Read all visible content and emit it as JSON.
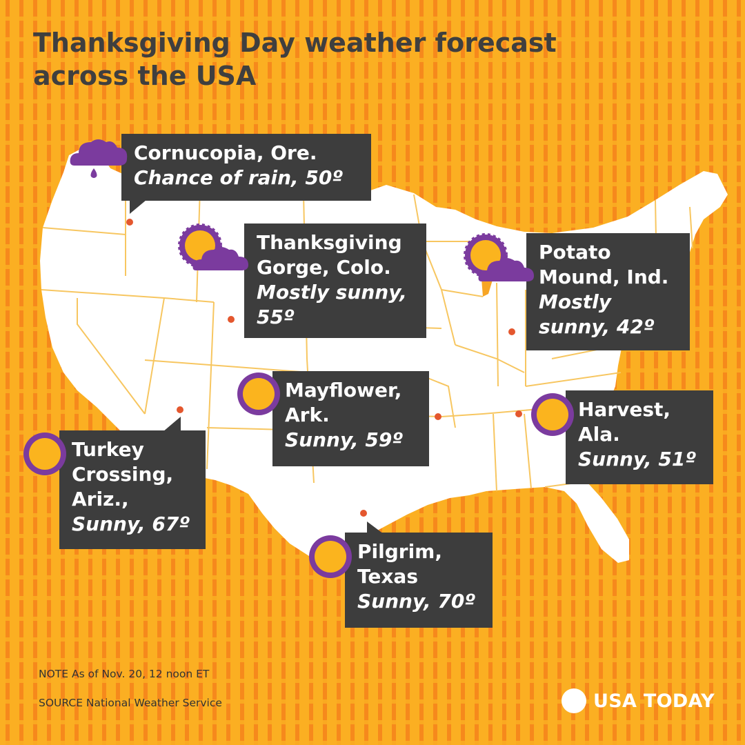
{
  "title": "Thanksgiving Day weather forecast across the USA",
  "locations": [
    {
      "place": "Cornucopia, Ore.",
      "condition": "Chance of rain, 50º",
      "icon": "rain-cloud-icon"
    },
    {
      "place": "Thanksgiving Gorge, Colo.",
      "condition": "Mostly sunny, 55º",
      "icon": "partly-sunny-icon"
    },
    {
      "place": "Potato Mound, Ind.",
      "condition": "Mostly sunny, 42º",
      "icon": "partly-sunny-icon"
    },
    {
      "place": "Mayflower, Ark.",
      "condition": "Sunny, 59º",
      "icon": "sun-icon"
    },
    {
      "place": "Harvest, Ala.",
      "condition": "Sunny, 51º",
      "icon": "sun-icon"
    },
    {
      "place": "Turkey Crossing, Ariz.,",
      "condition": "Sunny, 67º",
      "icon": "sun-icon"
    },
    {
      "place": "Pilgrim, Texas",
      "condition": "Sunny, 70º",
      "icon": "sun-icon"
    }
  ],
  "note": "NOTE As of Nov. 20, 12 noon ET",
  "source": "SOURCE National Weather Service",
  "brand": "USA TODAY",
  "colors": {
    "background": "#fbaf22",
    "stripe": "#f6891c",
    "land": "#ffffff",
    "state_border": "#f7c660",
    "marker": "#e4572e",
    "callout": "#3d3d3d",
    "cloud": "#7b3b9e",
    "sun": "#fbb41e",
    "sun_rays": "#7b3b9e"
  }
}
